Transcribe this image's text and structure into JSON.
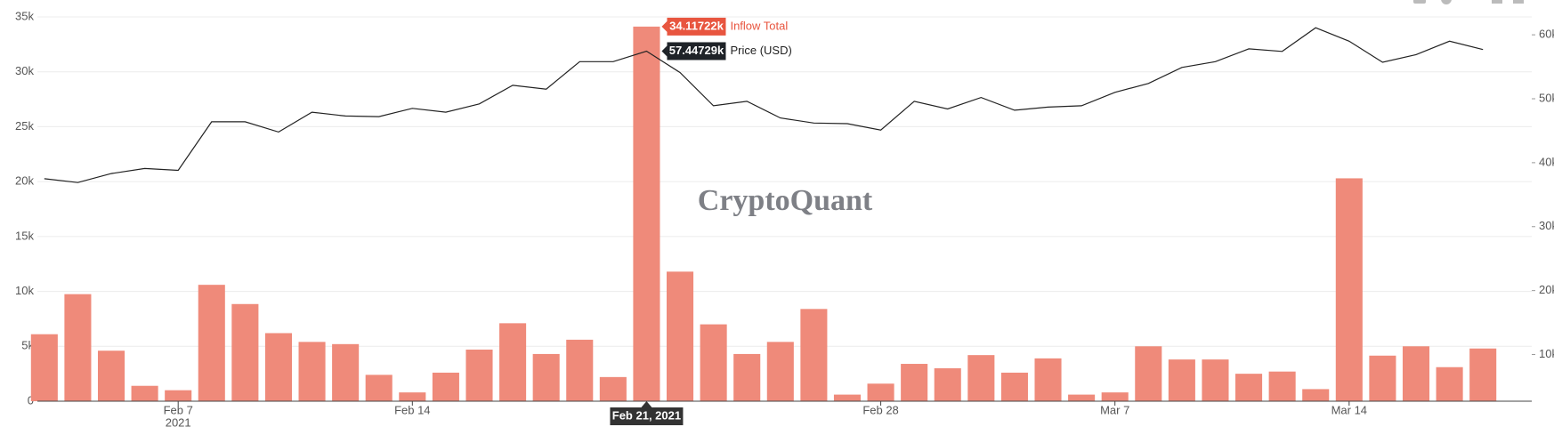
{
  "chart_data": {
    "type": "bar_line",
    "watermark": "CryptoQuant",
    "x": [
      "2021-02-03",
      "2021-02-04",
      "2021-02-05",
      "2021-02-06",
      "2021-02-07",
      "2021-02-08",
      "2021-02-09",
      "2021-02-10",
      "2021-02-11",
      "2021-02-12",
      "2021-02-13",
      "2021-02-14",
      "2021-02-15",
      "2021-02-16",
      "2021-02-17",
      "2021-02-18",
      "2021-02-19",
      "2021-02-20",
      "2021-02-21",
      "2021-02-22",
      "2021-02-23",
      "2021-02-24",
      "2021-02-25",
      "2021-02-26",
      "2021-02-27",
      "2021-02-28",
      "2021-03-01",
      "2021-03-02",
      "2021-03-03",
      "2021-03-04",
      "2021-03-05",
      "2021-03-06",
      "2021-03-07",
      "2021-03-08",
      "2021-03-09",
      "2021-03-10",
      "2021-03-11",
      "2021-03-12",
      "2021-03-13",
      "2021-03-14",
      "2021-03-15",
      "2021-03-16",
      "2021-03-17",
      "2021-03-18"
    ],
    "xlim": [
      "2021-02-02T19:00:00Z",
      "2021-03-19T11:00:00Z"
    ],
    "xticks": [
      {
        "value": "2021-02-07",
        "label": "Feb 7"
      },
      {
        "value": "2021-02-14",
        "label": "Feb 14"
      },
      {
        "value": "2021-02-28",
        "label": "Feb 28"
      },
      {
        "value": "2021-03-07",
        "label": "Mar 7"
      },
      {
        "value": "2021-03-14",
        "label": "Mar 14"
      }
    ],
    "x_year_label": "2021",
    "ylim": [
      0,
      35000
    ],
    "yticks": [
      0,
      {
        "value": 5000,
        "label": "5k"
      },
      {
        "value": 10000,
        "label": "10k"
      },
      {
        "value": 15000,
        "label": "15k"
      },
      {
        "value": 20000,
        "label": "20k"
      },
      {
        "value": 25000,
        "label": "25k"
      },
      {
        "value": 30000,
        "label": "30k"
      },
      {
        "value": 35000,
        "label": "35k"
      }
    ],
    "y2lim": [
      2700,
      62800
    ],
    "y2ticks": [
      {
        "value": 10000,
        "label": "10k"
      },
      {
        "value": 20000,
        "label": "20k"
      },
      {
        "value": 30000,
        "label": "30k"
      },
      {
        "value": 40000,
        "label": "40k"
      },
      {
        "value": 50000,
        "label": "50k"
      },
      {
        "value": 60000,
        "label": "60k"
      }
    ],
    "grid": true,
    "series": [
      {
        "name": "Inflow Total",
        "kind": "bar",
        "color": "#ef8a7a",
        "values": [
          6100,
          9750,
          4600,
          1400,
          1000,
          10600,
          8850,
          6200,
          5400,
          5200,
          2400,
          800,
          2600,
          4700,
          7100,
          4300,
          5600,
          2200,
          34117.22,
          11800,
          7000,
          4300,
          5400,
          8400,
          600,
          1600,
          3400,
          3000,
          4200,
          2600,
          3900,
          600,
          800,
          5000,
          3800,
          3800,
          2500,
          2700,
          1100,
          20300,
          4150,
          5000,
          3100,
          4800
        ]
      },
      {
        "name": "Price (USD)",
        "kind": "line",
        "axis": "y2",
        "color": "#222222",
        "values": [
          37500,
          36900,
          38300,
          39100,
          38800,
          46400,
          46400,
          44800,
          47900,
          47300,
          47200,
          48500,
          47900,
          49200,
          52100,
          51500,
          55800,
          55800,
          57447.29,
          54100,
          48900,
          49600,
          47000,
          46200,
          46100,
          45100,
          49600,
          48400,
          50200,
          48200,
          48700,
          48900,
          51000,
          52400,
          54900,
          55800,
          57800,
          57400,
          61100,
          59000,
          55700,
          56900,
          59000,
          57700
        ]
      }
    ],
    "hover": {
      "x": "2021-02-21",
      "date_label": "Feb 21, 2021",
      "items": [
        {
          "series": 0,
          "value_label": "34.11722k",
          "color": "#e8553f"
        },
        {
          "series": 1,
          "value_label": "57.44729k",
          "color": "#1f2328"
        }
      ]
    }
  }
}
